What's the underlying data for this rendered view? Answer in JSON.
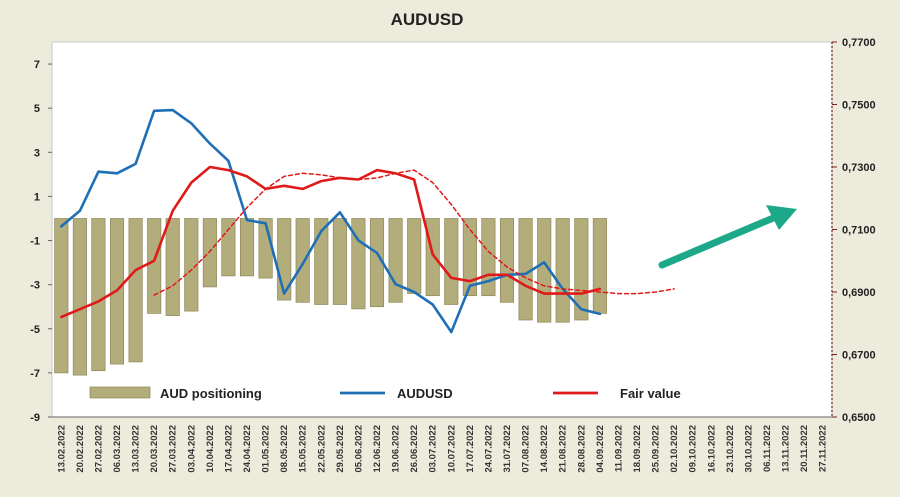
{
  "chart_data": {
    "type": "bar+line",
    "title": "AUDUSD",
    "x_labels": [
      "13.02.2022",
      "20.02.2022",
      "27.02.2022",
      "06.03.2022",
      "13.03.2022",
      "20.03.2022",
      "27.03.2022",
      "03.04.2022",
      "10.04.2022",
      "17.04.2022",
      "24.04.2022",
      "01.05.2022",
      "08.05.2022",
      "15.05.2022",
      "22.05.2022",
      "29.05.2022",
      "05.06.2022",
      "12.06.2022",
      "19.06.2022",
      "26.06.2022",
      "03.07.2022",
      "10.07.2022",
      "17.07.2022",
      "24.07.2022",
      "31.07.2022",
      "07.08.2022",
      "14.08.2022",
      "21.08.2022",
      "28.08.2022",
      "04.09.2022",
      "11.09.2022",
      "18.09.2022",
      "25.09.2022",
      "02.10.2022",
      "09.10.2022",
      "16.10.2022",
      "23.10.2022",
      "30.10.2022",
      "06.11.2022",
      "13.11.2022",
      "20.11.2022",
      "27.11.2022"
    ],
    "left_axis": {
      "ticks": [
        "7",
        "5",
        "3",
        "1",
        "-1",
        "-3",
        "-5",
        "-7",
        "-9"
      ],
      "min": -9,
      "max": 8
    },
    "right_axis": {
      "ticks": [
        "0,7700",
        "0,7500",
        "0,7300",
        "0,7100",
        "0,6900",
        "0,6700",
        "0,6500"
      ],
      "min": 0.65,
      "max": 0.77
    },
    "series": [
      {
        "name": "AUD positioning",
        "kind": "bar",
        "axis": "left",
        "color": "#b3ad7c",
        "bar_top": 0,
        "values": [
          -7.0,
          -7.1,
          -6.9,
          -6.6,
          -6.5,
          -4.3,
          -4.4,
          -4.2,
          -3.1,
          -2.6,
          -2.6,
          -2.7,
          -3.7,
          -3.8,
          -3.9,
          -3.9,
          -4.1,
          -4.0,
          -3.8,
          -3.4,
          -3.5,
          -3.9,
          -3.5,
          -3.5,
          -3.8,
          -4.6,
          -4.7,
          -4.7,
          -4.6,
          -4.3
        ]
      },
      {
        "name": "AUDUSD",
        "kind": "line",
        "axis": "right",
        "color": "#1f6fb7",
        "values": [
          0.711,
          0.716,
          0.7285,
          0.728,
          0.731,
          0.748,
          0.7482,
          0.744,
          0.7375,
          0.732,
          0.713,
          0.712,
          0.6895,
          0.699,
          0.7095,
          0.7155,
          0.7065,
          0.7025,
          0.6925,
          0.69,
          0.686,
          0.6772,
          0.692,
          0.6935,
          0.6955,
          0.6958,
          0.6995,
          0.691,
          0.6845,
          0.683
        ]
      },
      {
        "name": "Fair value",
        "kind": "line",
        "axis": "right",
        "color": "#e01a1a",
        "values": [
          0.682,
          0.6845,
          0.687,
          0.6905,
          0.697,
          0.7,
          0.716,
          0.725,
          0.73,
          0.729,
          0.727,
          0.723,
          0.724,
          0.723,
          0.7255,
          0.7265,
          0.726,
          0.729,
          0.728,
          0.726,
          0.702,
          0.6945,
          0.6935,
          0.6955,
          0.6955,
          0.692,
          0.6895,
          0.6895,
          0.6895,
          0.691
        ]
      },
      {
        "name": "",
        "kind": "line",
        "axis": "right",
        "color": "#e01a1a",
        "style": "dashed",
        "values": [
          null,
          null,
          null,
          null,
          null,
          0.689,
          0.692,
          0.697,
          0.703,
          0.71,
          0.717,
          0.723,
          0.727,
          0.728,
          0.7275,
          0.7265,
          0.726,
          0.7265,
          0.728,
          0.729,
          0.725,
          0.718,
          0.71,
          0.703,
          0.698,
          0.6945,
          0.692,
          0.691,
          0.6905,
          0.69,
          0.6895,
          0.6895,
          0.69,
          0.691
        ]
      }
    ],
    "annotations": [
      {
        "kind": "arrow",
        "direction": "up-right",
        "color": "#1ea88a"
      }
    ],
    "legend": {
      "position": "bottom",
      "entries": [
        "AUD positioning",
        "AUDUSD",
        "Fair value"
      ]
    },
    "grid": false
  }
}
